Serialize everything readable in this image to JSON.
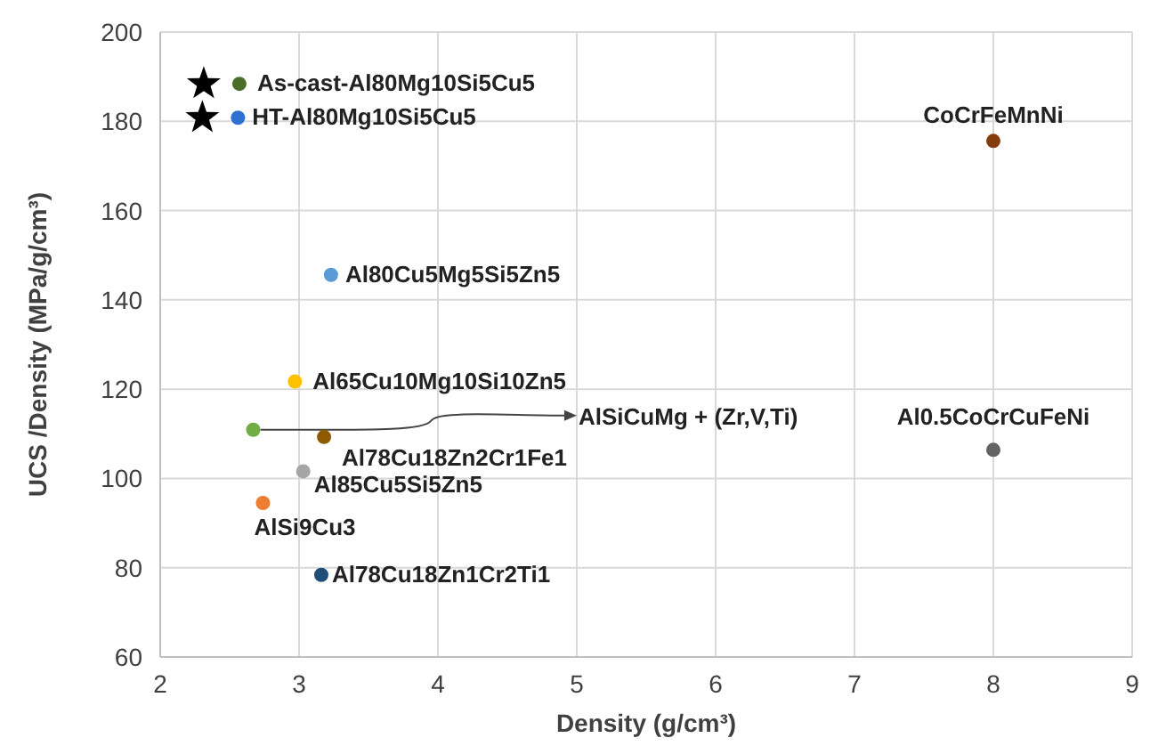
{
  "chart_data": {
    "type": "scatter",
    "xlabel": "Density (g/cm³)",
    "ylabel": "UCS /Density (MPa/g/cm³)",
    "xlim": [
      2,
      9
    ],
    "xticks": [
      2,
      3,
      4,
      5,
      6,
      7,
      8,
      9
    ],
    "ylim": [
      60,
      200
    ],
    "yticks": [
      60,
      80,
      100,
      120,
      140,
      160,
      180,
      200
    ],
    "grid": true,
    "marker": "circle",
    "series": [
      {
        "name": "As-cast-Al80Mg10Si5Cu5",
        "color": "#4a6e2a",
        "x": [
          2.57
        ],
        "values": [
          188.4
        ]
      },
      {
        "name": "HT-Al80Mg10Si5Cu5",
        "color": "#2e6fd0",
        "x": [
          2.56
        ],
        "values": [
          180.8
        ]
      },
      {
        "name": "Al80Cu5Mg5Si5Zn5",
        "color": "#5b9bd5",
        "x": [
          3.23
        ],
        "values": [
          145.6
        ]
      },
      {
        "name": "Al65Cu10Mg10Si10Zn5",
        "color": "#ffc000",
        "x": [
          2.97
        ],
        "values": [
          121.7
        ]
      },
      {
        "name": "AlSiCuMg + (Zr,V,Ti)",
        "color": "#70ad47",
        "x": [
          2.67
        ],
        "values": [
          110.9
        ]
      },
      {
        "name": "Al78Cu18Zn2Cr1Fe1",
        "color": "#8c5a00",
        "x": [
          3.18
        ],
        "values": [
          109.3
        ]
      },
      {
        "name": "Al85Cu5Si5Zn5",
        "color": "#a5a5a5",
        "x": [
          3.03
        ],
        "values": [
          101.6
        ]
      },
      {
        "name": "AlSi9Cu3",
        "color": "#ed7d31",
        "x": [
          2.74
        ],
        "values": [
          94.5
        ]
      },
      {
        "name": "Al78Cu18Zn1Cr2Ti1",
        "color": "#1f4e79",
        "x": [
          3.16
        ],
        "values": [
          78.4
        ]
      },
      {
        "name": "CoCrFeMnNi",
        "color": "#843c0c",
        "x": [
          8.0
        ],
        "values": [
          175.6
        ]
      },
      {
        "name": "Al0.5CoCrCuFeNi",
        "color": "#636363",
        "x": [
          8.0
        ],
        "values": [
          106.4
        ]
      }
    ]
  }
}
